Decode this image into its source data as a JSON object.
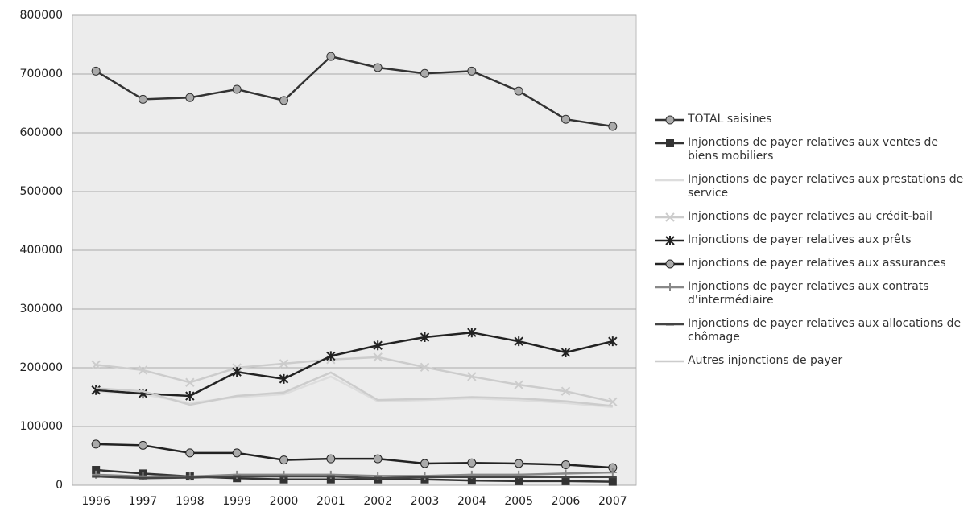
{
  "chart_data": {
    "type": "line",
    "categories": [
      "1996",
      "1997",
      "1998",
      "1999",
      "2000",
      "2001",
      "2002",
      "2003",
      "2004",
      "2005",
      "2006",
      "2007"
    ],
    "ylim": [
      0,
      800000
    ],
    "yticks": [
      0,
      100000,
      200000,
      300000,
      400000,
      500000,
      600000,
      700000,
      800000
    ],
    "grid": true,
    "series": [
      {
        "name": "TOTAL saisines",
        "color": "#333333",
        "marker": "circle",
        "values": [
          705000,
          657000,
          660000,
          674000,
          655000,
          730000,
          711000,
          701000,
          705000,
          671000,
          623000,
          611000
        ]
      },
      {
        "name": "Injonctions de payer relatives aux ventes de biens mobiliers",
        "color": "#333333",
        "marker": "square",
        "values": [
          26000,
          20000,
          15000,
          12000,
          10000,
          10000,
          10000,
          10000,
          8000,
          7000,
          7000,
          6000
        ]
      },
      {
        "name": "Injonctions de payer relatives aux prestations de service",
        "color": "#dddddd",
        "marker": "none",
        "values": [
          160000,
          155000,
          140000,
          150000,
          155000,
          185000,
          143000,
          145000,
          148000,
          145000,
          140000,
          133000
        ]
      },
      {
        "name": "Injonctions de payer relatives au crédit-bail",
        "color": "#cccccc",
        "marker": "x",
        "values": [
          205000,
          196000,
          175000,
          200000,
          207000,
          214000,
          218000,
          201000,
          185000,
          171000,
          160000,
          142000
        ]
      },
      {
        "name": "Injonctions de payer relatives aux prêts",
        "color": "#222222",
        "marker": "star",
        "values": [
          162000,
          156000,
          152000,
          193000,
          181000,
          220000,
          238000,
          252000,
          260000,
          245000,
          226000,
          245000
        ]
      },
      {
        "name": "Injonctions de payer relatives aux assurances",
        "color": "#222222",
        "marker": "circle",
        "values": [
          70000,
          68000,
          55000,
          55000,
          43000,
          45000,
          45000,
          37000,
          38000,
          37000,
          35000,
          30000
        ]
      },
      {
        "name": "Injonctions de payer relatives aux contrats d'intermédiaire",
        "color": "#888888",
        "marker": "plus",
        "values": [
          18000,
          15000,
          15000,
          18000,
          18000,
          18000,
          16000,
          16000,
          18000,
          18000,
          20000,
          22000
        ]
      },
      {
        "name": "Injonctions de payer relatives aux allocations de chômage",
        "color": "#444444",
        "marker": "dash",
        "values": [
          15000,
          12000,
          13000,
          15000,
          15000,
          15000,
          12000,
          14000,
          14000,
          14000,
          14000,
          14000
        ]
      },
      {
        "name": "Autres injonctions de payer",
        "color": "#cccccc",
        "marker": "none",
        "values": [
          165000,
          160000,
          137000,
          152000,
          158000,
          192000,
          145000,
          147000,
          150000,
          148000,
          143000,
          135000
        ]
      }
    ]
  }
}
